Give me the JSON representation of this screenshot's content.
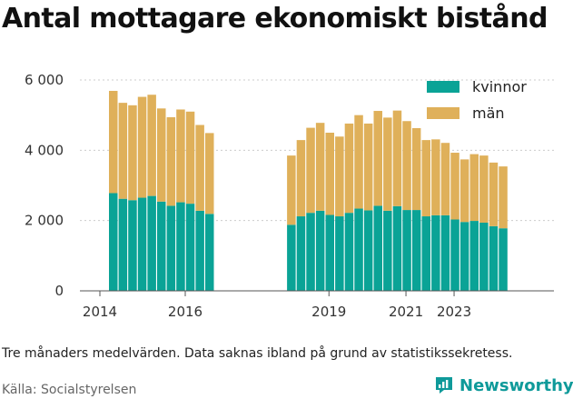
{
  "title": "Antal mottagare ekonomiskt bistånd",
  "note": "Tre månaders medelvärden. Data saknas ibland på grund av statistikssekretess.",
  "source": "Källa: Socialstyrelsen",
  "brand": {
    "name": "Newsworthy",
    "icon": "newsworthy-logo-icon"
  },
  "colors": {
    "kvinnor": "#0aa396",
    "man": "#dfb05a",
    "axis": "#555555",
    "grid": "#cccccc"
  },
  "chart_data": {
    "type": "bar",
    "stacked": true,
    "x_ticks": [
      "2014",
      "2016",
      "2019",
      "2021",
      "2023"
    ],
    "y_ticks": [
      "6 000",
      "4 000",
      "2 000",
      "0"
    ],
    "ylim": [
      0,
      6000
    ],
    "grid": true,
    "legend_position": "top-right",
    "categories": [
      "2014 Q2",
      "2014 Q3",
      "2014 Q4",
      "2015 Q1",
      "2015 Q2",
      "2015 Q3",
      "2015 Q4",
      "2016 Q1",
      "2016 Q2",
      "2016 Q3",
      "2016 Q4",
      "2017 Q1",
      "2017 Q2",
      "2017 Q3",
      "2017 Q4",
      "2018 Q1",
      "2018 Q2",
      "2018 Q3",
      "2018 Q4",
      "2019 Q1",
      "2019 Q2",
      "2019 Q3",
      "2019 Q4",
      "2020 Q1",
      "2020 Q2",
      "2020 Q3",
      "2020 Q4",
      "2021 Q1",
      "2022 Q1",
      "2022 Q2",
      "2022 Q3",
      "2022 Q4",
      "2023 Q1",
      "2023 Q2",
      "2023 Q3",
      "2023 Q4",
      "2024 Q1",
      "2024 Q2",
      "2024 Q3",
      "2024 Q4"
    ],
    "series": [
      {
        "name": "kvinnor",
        "values": [
          2780,
          2620,
          2580,
          2650,
          2700,
          2540,
          2420,
          2520,
          2480,
          2280,
          2190,
          null,
          null,
          null,
          null,
          1880,
          2120,
          2220,
          2280,
          2160,
          2120,
          2220,
          2340,
          2290,
          2420,
          2280,
          2410,
          2300,
          2300,
          2120,
          2150,
          2150,
          2030,
          1960,
          1990,
          1940,
          1840,
          1780,
          null,
          null
        ]
      },
      {
        "name": "män",
        "values": [
          2910,
          2730,
          2700,
          2870,
          2880,
          2650,
          2520,
          2640,
          2620,
          2440,
          2300,
          null,
          null,
          null,
          null,
          1970,
          2170,
          2420,
          2500,
          2340,
          2270,
          2540,
          2660,
          2470,
          2700,
          2650,
          2720,
          2530,
          2330,
          2170,
          2160,
          2060,
          1900,
          1780,
          1900,
          1910,
          1810,
          1760,
          null,
          null
        ]
      }
    ]
  }
}
